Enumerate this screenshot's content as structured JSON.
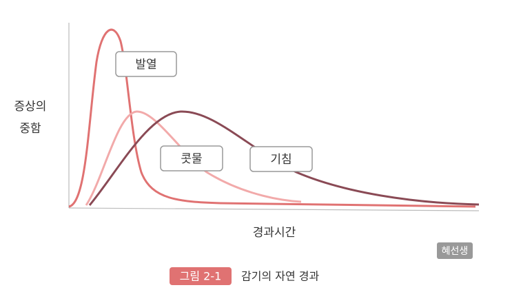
{
  "axes": {
    "y_label_lines": [
      "증상의",
      "중함"
    ],
    "x_label": "경과시간"
  },
  "curves": [
    {
      "label": "발열"
    },
    {
      "label": "콧물"
    },
    {
      "label": "기침"
    }
  ],
  "watermark": "혜선생",
  "caption": {
    "number": "그림 2-1",
    "title": "감기의 자연 경과"
  }
}
